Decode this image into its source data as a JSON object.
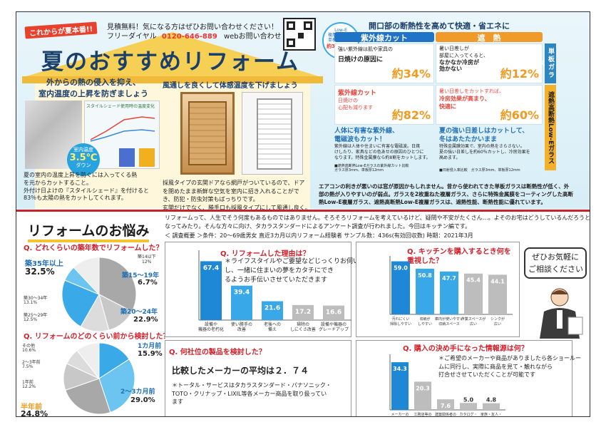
{
  "header": {
    "tag": "これからが夏本番!!",
    "contact_line1": "見積無料！気になる方はぜひお問い合わせください！",
    "contact_line2_prefix": "フリーダイヤル",
    "phone": "0120-646-889",
    "web_text": "webお問い合わせ",
    "main_title": "夏のおすすめリフォーム"
  },
  "left_panel": {
    "heading1": "外からの熱の侵入を抑え、",
    "heading2": "室内温度の上昇を防ぎましょう",
    "badge_line1": "室内温度",
    "badge_value": "3.5℃",
    "badge_line2": "ダウン",
    "mini_chart_title": "スタイルシェード使用時の温度変化",
    "caption1": "夏の室内の温度上昇を防ぐには入ってくる熱",
    "caption2": "を元からカットすること。",
    "caption3": "外付け日よけの『スタイルシェード』を付けると",
    "caption4": "83％も太陽の熱をカットしてくれます。"
  },
  "mid_panel": {
    "heading": "風通しを良くして体感温度を下げましょう",
    "caption1": "採風タイプの玄関ドアなら網戸がついているので、ドア",
    "caption2": "を閉めたまま新鮮な空気を室内に招き入れることがで",
    "caption3": "き、防犯・防虫対策もばっちりです。",
    "caption4": "玄関だけでなく、勝手口も採風タイプにして風通し良く。"
  },
  "right_panel": {
    "title": "開口部の断熱性を高めて快適・省エネに",
    "low_e_badge1": "Low-E",
    "low_e_badge2": "複層ガラスは",
    "low_e_badge3": "単板ガラスの",
    "low_e_badge4": "約3倍の効果",
    "col1_header": "紫外線カット",
    "col2_header": "遮　熱",
    "row1_label": "単板ガラス",
    "row2_label": "遮熱高断熱Low-Eガラス",
    "c11_line1": "強い紫外線は肌や家具の",
    "c11_line2": "日焼けの原因に",
    "c11_pct": "約34%",
    "c12_line1": "暑い日差しが",
    "c12_line2": "部屋に入ってくると、",
    "c12_line3": "なかなか冷房が",
    "c12_line4": "効かない",
    "c12_pct": "約12%",
    "c21_line1": "紫外線カット",
    "c21_line2": "日焼けの",
    "c21_line3": "心配も減ります",
    "c21_pct": "約82%",
    "c22_line1": "暑い日差しをカットすれば、",
    "c22_line2": "冷房効果が高まり、",
    "c22_line3": "快適に",
    "c22_pct": "約60%",
    "note1_title1": "人体に有害な紫外線、",
    "note1_title2": "電磁波もカット！",
    "note1_body1": "紫外線は人体や住まいに有害な電磁波。日焼",
    "note1_body2": "けしたり、家具などの色あせの原因のひとつに",
    "note1_body3": "なります。特殊金属膜なら約8割をカットします。",
    "note1_foot1": "■遮熱高断熱Low-Eガラスの紫外線カット比較",
    "note1_foot2": "ガラス厚3mm、単板厚12mm",
    "note2_title1": "夏の強い日差しはカットして、",
    "note2_title2": "冬はあたたかいまま",
    "note2_body1": "特殊金属膜効果で、室内の熱をさらさない。",
    "note2_body2": "夏の強い日差しを約60％カットし、冷房効果を",
    "note2_body3": "高めます。",
    "note2_foot": "■日射侵入率比較　ガラス厚3mm、単板厚12mm",
    "bottom_text1": "エアコンの利きが悪いのは窓が原因かもしれません。昔から使われてきた単板ガラスは断熱性が低く、外",
    "bottom_text2": "部の熱が入りやすいのが弱点。ガラスを2枚重ねた複層ガラス、さらに特殊金属膜をコーティングした高断",
    "bottom_text3": "熱Low-E複層ガラス、遮熱高断熱Low-E複層ガラスは、遮熱性能、断熱性能に優れています。"
  },
  "bottom": {
    "title": "リフォームのお悩み",
    "intro1": "リフォームって、人生でそう何度もあるものではありません。そろそろリフォームを考えているけど、疑問や不安がたくさん…。よそのお宅はどうしているんだろうと気に",
    "intro2": "なってみたり。そんな方々に向け、タカラスタンダードによるアンケート調査が行われました。今回はキッチン編です。",
    "survey": "＜ 調査概要 ＞条件：20～69歳男女 直近3カ月以内リフォーム経験者 サンプル数：436s(有効回収数) 時期：2021年3月",
    "bubble1": "ぜひお気軽に",
    "bubble2": "ご相談ください",
    "q_other_title": "Q. 何社位の製品を検討した？",
    "q_other_body": "比較したメーカーの平均は２．７４",
    "q_other_note1": "＊トータル・サービスはタカラスタンダード・パナソニック・",
    "q_other_note2": "TOTO・クリナップ・LIXIL等各メーカー商品を取り扱ってい",
    "q_other_note3": "ます"
  },
  "chart_data": [
    {
      "type": "pie",
      "title": "Q. どれくらいの築年数でリフォームした？",
      "slices": [
        {
          "label": "築35年以上",
          "value": 32.5,
          "color": "#a8a8a8"
        },
        {
          "label": "築30～34年",
          "value": 13.1,
          "color": "#c8c8c8"
        },
        {
          "label": "築25～29年",
          "value": 12.5,
          "color": "#dcdcdc"
        },
        {
          "label": "築20～24年",
          "value": 22.9,
          "color": "#3aa9e8"
        },
        {
          "label": "築15～19年",
          "value": 6.7,
          "color": "#6cc4f0"
        },
        {
          "label": "築14以下",
          "value": 12,
          "color": "#eeeeee"
        }
      ],
      "labels": {
        "big_top": "築35年以上",
        "big_top_val": "32.5%",
        "s30": "築30～34年",
        "s30v": "13.1%",
        "s25": "築25～29年",
        "s25v": "12.5%",
        "s20": "築20～24年",
        "s20v": "22.9%",
        "s15": "築15～19年",
        "s15v": "6.7%",
        "s14": "築14以下",
        "s14v": "12%"
      }
    },
    {
      "type": "pie",
      "title": "Q. リフォームのどのくらい前から検討した？",
      "slices": [
        {
          "label": "1カ月前",
          "value": 15.9,
          "color": "#3aa9e8"
        },
        {
          "label": "2～3カ月前",
          "value": 29.0,
          "color": "#6cc4f0"
        },
        {
          "label": "半年前",
          "value": 24.8,
          "color": "#a8a8a8"
        },
        {
          "label": "1年前",
          "value": 12.2,
          "color": "#c8c8c8"
        },
        {
          "label": "2～3年前",
          "value": 7.5,
          "color": "#dcdcdc"
        },
        {
          "label": "その他",
          "value": 10.6,
          "color": "#eeeeee"
        }
      ],
      "labels": {
        "m1": "1カ月前",
        "m1v": "15.9%",
        "m23": "2～3カ月前",
        "m23v": "29.0%",
        "half": "半年前",
        "halfv": "24.8%",
        "y1": "1年前",
        "y1v": "12.2%",
        "y23": "2～3年前",
        "y23v": "7.5%",
        "other": "その他",
        "otherv": "10.6%"
      }
    },
    {
      "type": "bar",
      "title": "Q. リフォームした理由は？",
      "categories": [
        "設備や\n機器の老朽化",
        "使い勝手の\n改善",
        "老後への\n備え",
        "掃除の\nしにくさ改善",
        "設備や機器の\nグレードアップ"
      ],
      "values": [
        67.4,
        39.4,
        21.6,
        17.2,
        16.6
      ],
      "ylim": [
        0,
        80
      ],
      "note1": "＊ライフスタイルやご要望などじっくりお伺い",
      "note2": "し、一緒に住まいの夢をカタチにでき",
      "note3": "るようお手伝いさせていただきます"
    },
    {
      "type": "bar",
      "title": "Q. キッチンを購入するとき何を\n重視した？",
      "categories": [
        "汚れにくい\n掃除しやすい",
        "収納が\nしやすい",
        "庫内が使いやすい\n収納スペース",
        "作業スペースが\n広い",
        "シンクが\n広い"
      ],
      "values": [
        59.0,
        50.8,
        47.7,
        45.4,
        44.1
      ],
      "ylim": [
        0,
        65
      ]
    },
    {
      "type": "bar",
      "title": "Q. 購入の決め手になった情報源は何？",
      "categories": [
        "メーカーの\nショールーム",
        "工務店等の\nアドバイス",
        "建築関係者の\nアドバイス",
        "カタログ・\nパンフレット",
        "家族・友人・\n知人の話"
      ],
      "values": [
        34.3,
        20.3,
        7.6,
        5.0,
        4.8
      ],
      "ylim": [
        0,
        40
      ],
      "note1": "＊ご希望のメーカーや商品がありましたら各ショールー",
      "note2": "ムに同行し、実際に商品を見て・触れながら",
      "note3": "打合せさせていただくことが可能です"
    }
  ]
}
